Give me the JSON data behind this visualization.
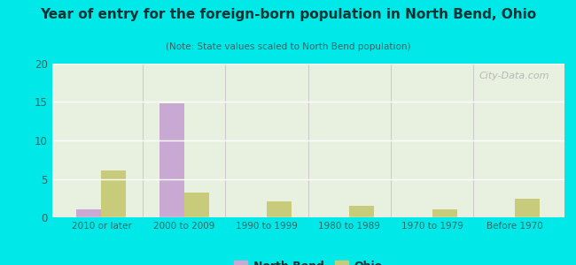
{
  "title": "Year of entry for the foreign-born population in North Bend, Ohio",
  "subtitle": "(Note: State values scaled to North Bend population)",
  "categories": [
    "2010 or later",
    "2000 to 2009",
    "1990 to 1999",
    "1980 to 1989",
    "1970 to 1979",
    "Before 1970"
  ],
  "north_bend_values": [
    1,
    14.8,
    0,
    0,
    0,
    0
  ],
  "ohio_values": [
    6.1,
    3.2,
    2.1,
    1.5,
    1.0,
    2.4
  ],
  "north_bend_color": "#c9a8d4",
  "ohio_color": "#c8cc7a",
  "background_outer": "#00e8e8",
  "background_inner_top": "#f0f5ec",
  "background_inner": "#e8f0e0",
  "ylim": [
    0,
    20
  ],
  "yticks": [
    0,
    5,
    10,
    15,
    20
  ],
  "bar_width": 0.3,
  "watermark": "City-Data.com",
  "legend_north_bend": "North Bend",
  "legend_ohio": "Ohio",
  "title_color": "#003333",
  "subtitle_color": "#336666",
  "tick_color": "#336666",
  "separator_color": "#cccccc"
}
